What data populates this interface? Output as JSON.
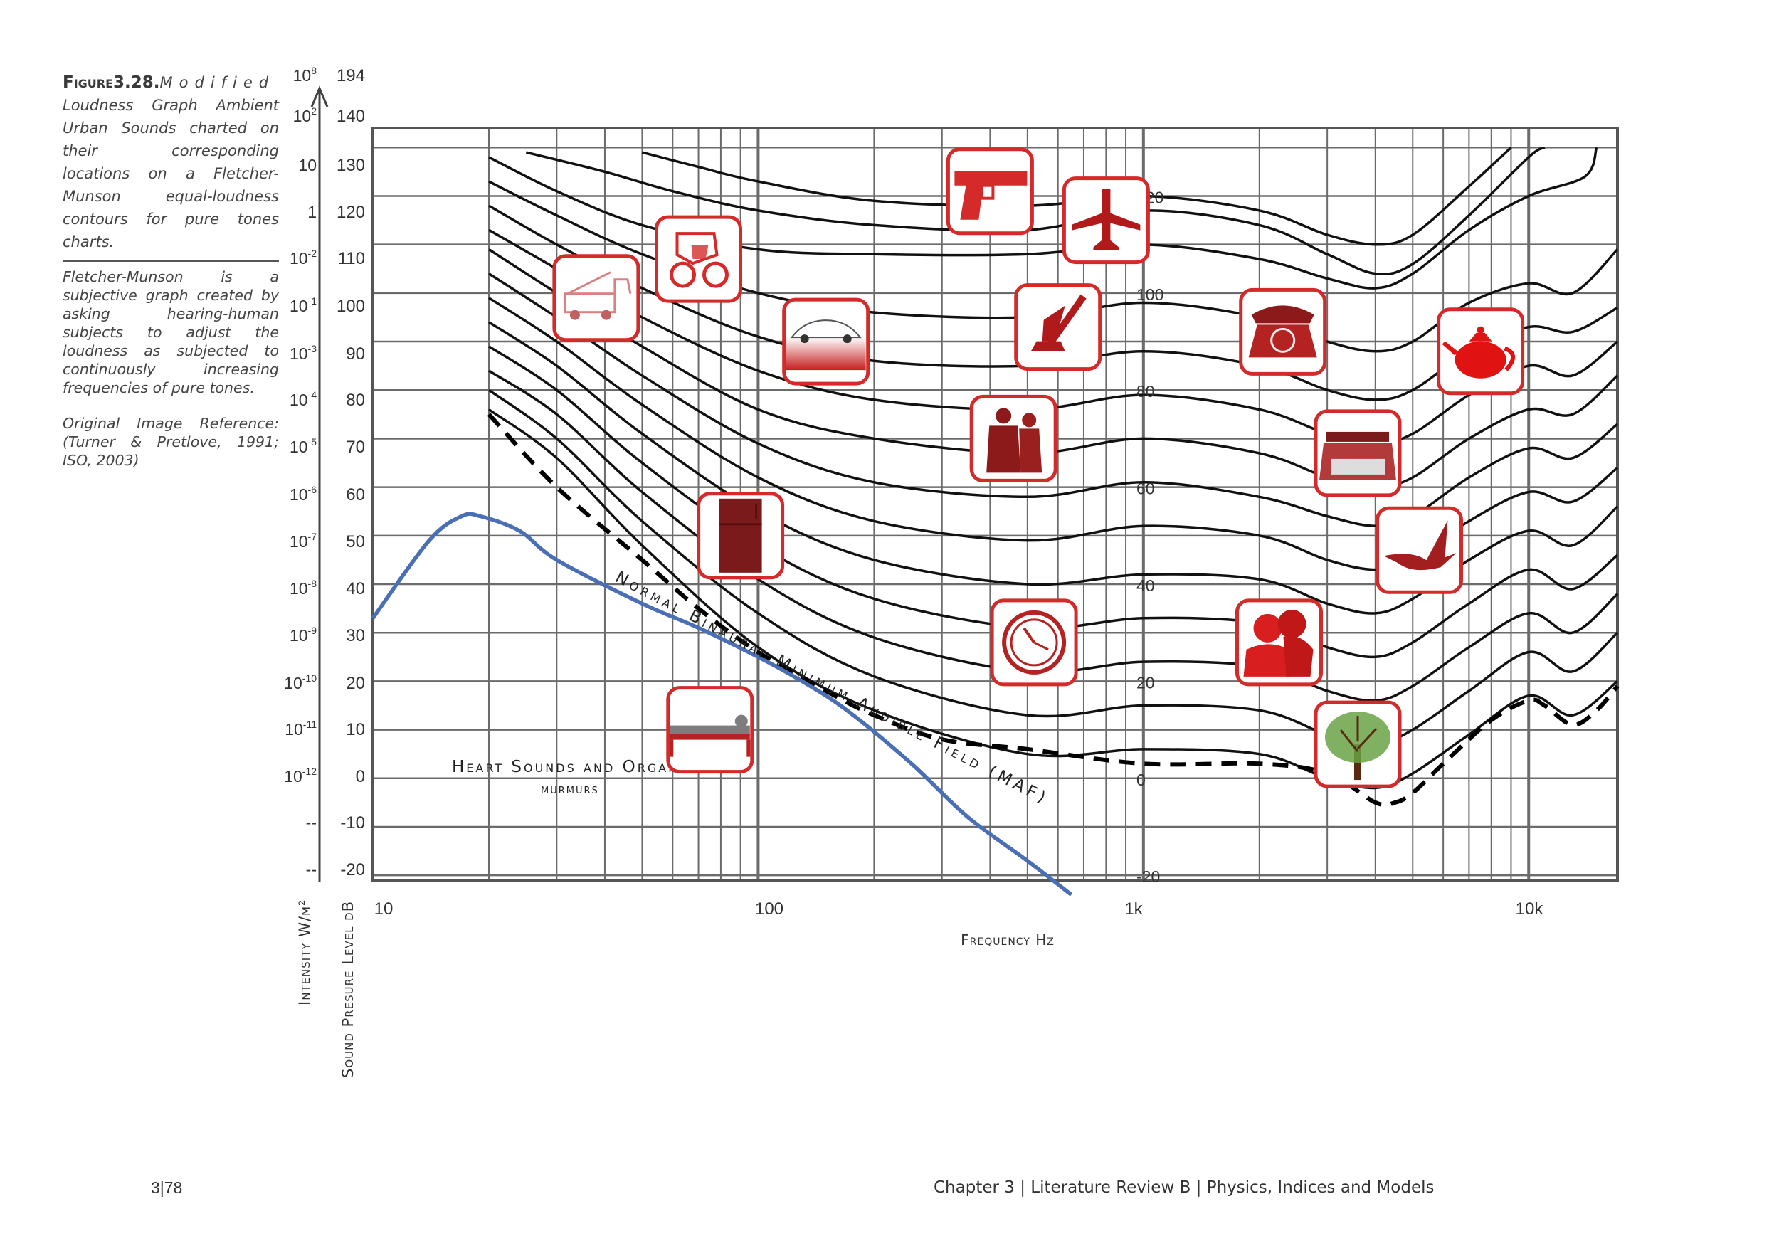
{
  "caption": {
    "figure_label": "Figure3.28.",
    "figure_title": "Modified",
    "text1": "Loudness Graph Ambient Urban Sounds charted on their corresponding locations on a Fletcher-Munson equal-loudness contours for pure tones charts.",
    "text2": "Fletcher-Munson is a subjective graph created by asking hearing-human subjects to adjust the loudness as subjected to continuously increasing frequencies of pure tones.",
    "text3": "Original Image Reference: (Turner & Pretlove, 1991; ISO, 2003)"
  },
  "footer": {
    "page": "3|78",
    "chapter": "Chapter 3   | Literature Review B | Physics, Indices and Models"
  },
  "colors": {
    "grid": "#6b6b6b",
    "contour": "#111111",
    "blue": "#4a6fb5",
    "icon_red": "#d42a2a",
    "icon_fill": "#b11a1a"
  },
  "chart_data": {
    "type": "line",
    "xlabel": "Frequency Hz",
    "ylabel": "Sound Presure Level dB",
    "y2label": "Intensity W/m²",
    "x_scale": "log",
    "xlim": [
      10,
      17000
    ],
    "ylim": [
      -23,
      136
    ],
    "x_ticks": [
      {
        "value": 10,
        "label": "10"
      },
      {
        "value": 100,
        "label": "100"
      },
      {
        "value": 1000,
        "label": "1k"
      },
      {
        "value": 10000,
        "label": "10k"
      }
    ],
    "db_ticks": [
      "194",
      "140",
      "130",
      "120",
      "110",
      "100",
      "90",
      "80",
      "70",
      "60",
      "50",
      "40",
      "30",
      "20",
      "10",
      "0",
      "-10",
      "-20"
    ],
    "intensity_ticks": [
      {
        "sup": "8",
        "base": "10"
      },
      {
        "sup": "2",
        "base": "10"
      },
      {
        "sup": "",
        "base": "10"
      },
      {
        "sup": "",
        "base": "1"
      },
      {
        "sup": "-2",
        "base": "10"
      },
      {
        "sup": "-1",
        "base": "10"
      },
      {
        "sup": "-3",
        "base": "10"
      },
      {
        "sup": "-4",
        "base": "10"
      },
      {
        "sup": "-5",
        "base": "10"
      },
      {
        "sup": "-6",
        "base": "10"
      },
      {
        "sup": "-7",
        "base": "10"
      },
      {
        "sup": "-8",
        "base": "10"
      },
      {
        "sup": "-9",
        "base": "10"
      },
      {
        "sup": "-10",
        "base": "10"
      },
      {
        "sup": "-11",
        "base": "10"
      },
      {
        "sup": "-12",
        "base": "10"
      },
      {
        "sup": "",
        "base": "--"
      },
      {
        "sup": "",
        "base": "--"
      }
    ],
    "contour_labels": [
      {
        "label": "120",
        "value": 120
      },
      {
        "label": "100",
        "value": 100
      },
      {
        "label": "80",
        "value": 80
      },
      {
        "label": "60",
        "value": 60
      },
      {
        "label": "40",
        "value": 40
      },
      {
        "label": "20",
        "value": 20
      },
      {
        "label": "0",
        "value": 0
      },
      {
        "label": "-20",
        "value": -20
      }
    ],
    "contours": [
      {
        "points": [
          [
            25,
            129
          ],
          [
            40,
            125
          ],
          [
            60,
            121
          ],
          [
            100,
            117
          ],
          [
            200,
            114
          ],
          [
            500,
            113
          ],
          [
            1000,
            117
          ],
          [
            2000,
            114
          ],
          [
            3000,
            108
          ],
          [
            4000,
            104
          ],
          [
            5000,
            106
          ],
          [
            7000,
            116
          ],
          [
            10000,
            128
          ],
          [
            11000,
            130
          ]
        ]
      },
      {
        "points": [
          [
            50,
            129
          ],
          [
            70,
            126
          ],
          [
            100,
            123
          ],
          [
            200,
            119
          ],
          [
            500,
            118
          ],
          [
            1000,
            120
          ],
          [
            2000,
            117
          ],
          [
            3000,
            112
          ],
          [
            4000,
            110
          ],
          [
            5000,
            112
          ],
          [
            7000,
            122
          ],
          [
            9000,
            130
          ]
        ]
      },
      {
        "points": [
          [
            20,
            128
          ],
          [
            30,
            121
          ],
          [
            50,
            114
          ],
          [
            100,
            109
          ],
          [
            200,
            108
          ],
          [
            500,
            108
          ],
          [
            1000,
            110
          ],
          [
            2000,
            107
          ],
          [
            3000,
            103
          ],
          [
            4000,
            101
          ],
          [
            5000,
            104
          ],
          [
            7000,
            113
          ],
          [
            10000,
            120
          ],
          [
            14000,
            124
          ],
          [
            15000,
            130
          ]
        ]
      },
      {
        "points": [
          [
            20,
            123
          ],
          [
            30,
            116
          ],
          [
            50,
            108
          ],
          [
            100,
            100
          ],
          [
            200,
            96
          ],
          [
            500,
            95
          ],
          [
            1000,
            98
          ],
          [
            2000,
            95
          ],
          [
            3000,
            90
          ],
          [
            4000,
            88
          ],
          [
            5000,
            90
          ],
          [
            7000,
            98
          ],
          [
            10000,
            102
          ],
          [
            13000,
            100
          ],
          [
            17000,
            109
          ]
        ]
      },
      {
        "points": [
          [
            20,
            118
          ],
          [
            30,
            110
          ],
          [
            50,
            101
          ],
          [
            100,
            91
          ],
          [
            200,
            86
          ],
          [
            500,
            85
          ],
          [
            1000,
            88
          ],
          [
            2000,
            85
          ],
          [
            3000,
            80
          ],
          [
            4000,
            78
          ],
          [
            5000,
            80
          ],
          [
            7000,
            88
          ],
          [
            10000,
            93
          ],
          [
            13000,
            92
          ],
          [
            17000,
            97
          ]
        ]
      },
      {
        "points": [
          [
            20,
            113
          ],
          [
            30,
            105
          ],
          [
            50,
            95
          ],
          [
            100,
            84
          ],
          [
            200,
            78
          ],
          [
            500,
            76
          ],
          [
            1000,
            79
          ],
          [
            2000,
            76
          ],
          [
            3000,
            71
          ],
          [
            4000,
            69
          ],
          [
            5000,
            71
          ],
          [
            7000,
            79
          ],
          [
            10000,
            85
          ],
          [
            13000,
            83
          ],
          [
            17000,
            90
          ]
        ]
      },
      {
        "points": [
          [
            20,
            109
          ],
          [
            30,
            100
          ],
          [
            50,
            89
          ],
          [
            100,
            76
          ],
          [
            200,
            70
          ],
          [
            500,
            67
          ],
          [
            1000,
            70
          ],
          [
            2000,
            67
          ],
          [
            3000,
            62
          ],
          [
            4000,
            60
          ],
          [
            5000,
            62
          ],
          [
            7000,
            70
          ],
          [
            10000,
            76
          ],
          [
            13000,
            75
          ],
          [
            17000,
            83
          ]
        ]
      },
      {
        "points": [
          [
            20,
            104
          ],
          [
            30,
            95
          ],
          [
            50,
            83
          ],
          [
            100,
            69
          ],
          [
            200,
            61
          ],
          [
            500,
            58
          ],
          [
            1000,
            61
          ],
          [
            2000,
            58
          ],
          [
            3000,
            54
          ],
          [
            4000,
            52
          ],
          [
            5000,
            54
          ],
          [
            7000,
            62
          ],
          [
            10000,
            68
          ],
          [
            13000,
            66
          ],
          [
            17000,
            73
          ]
        ]
      },
      {
        "points": [
          [
            20,
            99
          ],
          [
            30,
            90
          ],
          [
            50,
            77
          ],
          [
            100,
            62
          ],
          [
            200,
            53
          ],
          [
            500,
            49
          ],
          [
            1000,
            52
          ],
          [
            2000,
            50
          ],
          [
            3000,
            45
          ],
          [
            4000,
            43
          ],
          [
            5000,
            45
          ],
          [
            7000,
            53
          ],
          [
            10000,
            59
          ],
          [
            13000,
            57
          ],
          [
            17000,
            64
          ]
        ]
      },
      {
        "points": [
          [
            20,
            94
          ],
          [
            30,
            85
          ],
          [
            50,
            71
          ],
          [
            100,
            55
          ],
          [
            200,
            45
          ],
          [
            500,
            40
          ],
          [
            1000,
            42
          ],
          [
            2000,
            41
          ],
          [
            3000,
            36
          ],
          [
            4000,
            34
          ],
          [
            5000,
            37
          ],
          [
            7000,
            45
          ],
          [
            10000,
            51
          ],
          [
            13000,
            48
          ],
          [
            17000,
            56
          ]
        ]
      },
      {
        "points": [
          [
            20,
            89
          ],
          [
            30,
            80
          ],
          [
            50,
            65
          ],
          [
            100,
            48
          ],
          [
            200,
            37
          ],
          [
            500,
            31
          ],
          [
            1000,
            33
          ],
          [
            2000,
            32
          ],
          [
            3000,
            27
          ],
          [
            4000,
            25
          ],
          [
            5000,
            28
          ],
          [
            7000,
            36
          ],
          [
            10000,
            43
          ],
          [
            13000,
            39
          ],
          [
            17000,
            46
          ]
        ]
      },
      {
        "points": [
          [
            20,
            84
          ],
          [
            30,
            75
          ],
          [
            50,
            59
          ],
          [
            100,
            41
          ],
          [
            200,
            29
          ],
          [
            500,
            22
          ],
          [
            1000,
            24
          ],
          [
            2000,
            23
          ],
          [
            3000,
            18
          ],
          [
            4000,
            16
          ],
          [
            5000,
            19
          ],
          [
            7000,
            27
          ],
          [
            10000,
            34
          ],
          [
            13000,
            30
          ],
          [
            17000,
            38
          ]
        ]
      },
      {
        "points": [
          [
            20,
            80
          ],
          [
            30,
            70
          ],
          [
            50,
            53
          ],
          [
            100,
            34
          ],
          [
            200,
            21
          ],
          [
            500,
            13
          ],
          [
            1000,
            15
          ],
          [
            2000,
            14
          ],
          [
            3000,
            9
          ],
          [
            4000,
            7
          ],
          [
            5000,
            10
          ],
          [
            7000,
            18
          ],
          [
            10000,
            26
          ],
          [
            13000,
            22
          ],
          [
            17000,
            30
          ]
        ]
      },
      {
        "points": [
          [
            20,
            76
          ],
          [
            30,
            66
          ],
          [
            50,
            48
          ],
          [
            100,
            27
          ],
          [
            200,
            14
          ],
          [
            500,
            5
          ],
          [
            1000,
            6
          ],
          [
            2000,
            5
          ],
          [
            3000,
            0
          ],
          [
            4000,
            -2
          ],
          [
            5000,
            1
          ],
          [
            7000,
            9
          ],
          [
            10000,
            17
          ],
          [
            13000,
            13
          ],
          [
            17000,
            20
          ]
        ]
      }
    ],
    "maf": {
      "name": "Normal Binaural Minimum Audible Field (MAF)",
      "points": [
        [
          20,
          75
        ],
        [
          30,
          60
        ],
        [
          50,
          45
        ],
        [
          70,
          35
        ],
        [
          100,
          26
        ],
        [
          150,
          18
        ],
        [
          200,
          13
        ],
        [
          300,
          8
        ],
        [
          500,
          6
        ],
        [
          1000,
          3
        ],
        [
          2000,
          3
        ],
        [
          3000,
          1
        ],
        [
          4000,
          -5
        ],
        [
          4500,
          -5
        ],
        [
          5000,
          -3
        ],
        [
          6000,
          3
        ],
        [
          8000,
          12
        ],
        [
          10000,
          16
        ],
        [
          11000,
          15
        ],
        [
          13000,
          11
        ],
        [
          15000,
          14
        ],
        [
          17000,
          19
        ]
      ]
    },
    "heart_curve": {
      "name": "Heart Sounds and Organs murmurs",
      "label_line1": "Heart Sounds and Organs",
      "label_line2": "murmurs",
      "points": [
        [
          10,
          33
        ],
        [
          14,
          49
        ],
        [
          17,
          54
        ],
        [
          19,
          54
        ],
        [
          24,
          51
        ],
        [
          30,
          45
        ],
        [
          50,
          36
        ],
        [
          70,
          31
        ],
        [
          100,
          25
        ],
        [
          130,
          20
        ],
        [
          170,
          14
        ],
        [
          250,
          3
        ],
        [
          350,
          -8
        ],
        [
          500,
          -17
        ],
        [
          650,
          -24
        ]
      ]
    },
    "annotations": [
      {
        "name": "gun",
        "freq": 400,
        "db": 121
      },
      {
        "name": "airplane",
        "freq": 800,
        "db": 115
      },
      {
        "name": "motorcycle",
        "freq": 70,
        "db": 107
      },
      {
        "name": "crane",
        "freq": 38,
        "db": 99
      },
      {
        "name": "car",
        "freq": 150,
        "db": 90
      },
      {
        "name": "vacuum",
        "freq": 600,
        "db": 93
      },
      {
        "name": "telephone",
        "freq": 2300,
        "db": 92
      },
      {
        "name": "teapot",
        "freq": 7500,
        "db": 88
      },
      {
        "name": "couple",
        "freq": 460,
        "db": 70
      },
      {
        "name": "typewriter",
        "freq": 3600,
        "db": 67
      },
      {
        "name": "refrigerator",
        "freq": 90,
        "db": 50
      },
      {
        "name": "bird",
        "freq": 5200,
        "db": 47
      },
      {
        "name": "clock",
        "freq": 520,
        "db": 28
      },
      {
        "name": "kissing-couple",
        "freq": 2250,
        "db": 28
      },
      {
        "name": "tree",
        "freq": 3600,
        "db": 7
      },
      {
        "name": "hospital-bed",
        "freq": 75,
        "db": 10
      }
    ]
  }
}
